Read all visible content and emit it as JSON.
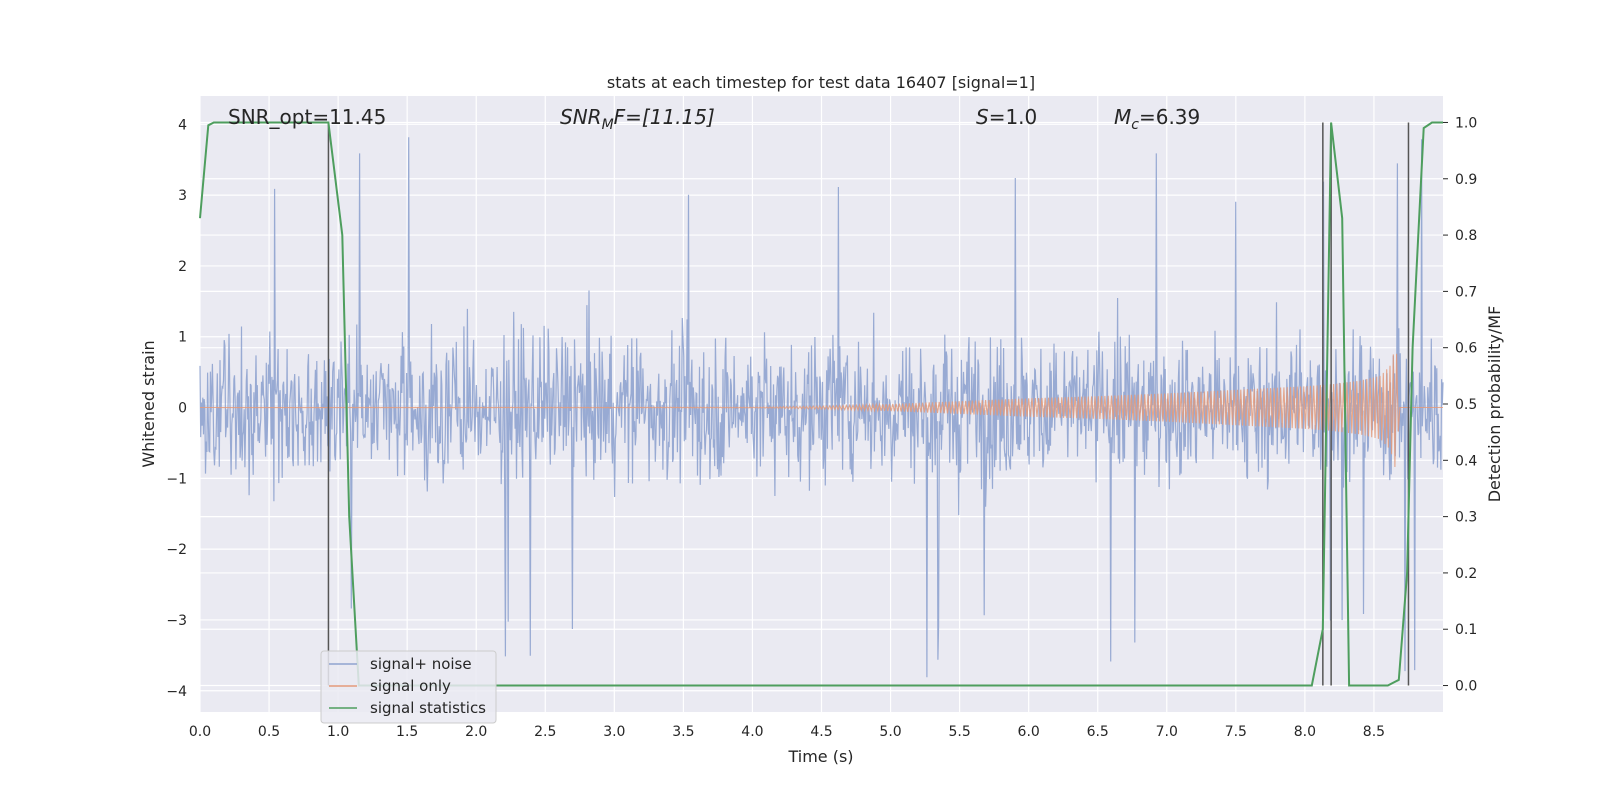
{
  "chart_data": {
    "type": "line",
    "title": "stats at each timestep for test data 16407 [signal=1]",
    "xlabel": "Time (s)",
    "ylabel_left": "Whitened strain",
    "ylabel_right": "Detection probability/MF",
    "xlim": [
      0.0,
      9.0
    ],
    "ylim_left": [
      -4.3,
      4.4
    ],
    "ylim_right": [
      -0.047,
      1.047
    ],
    "x_ticks": [
      "0.0",
      "0.5",
      "1.0",
      "1.5",
      "2.0",
      "2.5",
      "3.0",
      "3.5",
      "4.0",
      "4.5",
      "5.0",
      "5.5",
      "6.0",
      "6.5",
      "7.0",
      "7.5",
      "8.0",
      "8.5"
    ],
    "y_ticks_left": [
      "−4",
      "−3",
      "−2",
      "−1",
      "0",
      "1",
      "2",
      "3",
      "4"
    ],
    "y_ticks_right": [
      "0.0",
      "0.1",
      "0.2",
      "0.3",
      "0.4",
      "0.5",
      "0.6",
      "0.7",
      "0.8",
      "0.9",
      "1.0"
    ],
    "grid": true,
    "legend_position": "lower-left",
    "annotations": {
      "snr_opt": "SNR_opt=11.45",
      "snr_mf_base": "SNR",
      "snr_mf_sub": "M",
      "snr_mf_rest": "F=[11.15]",
      "s_italic": "S",
      "s_value": "=1.0",
      "mc_base": "M",
      "mc_sub": "c",
      "mc_value": "=6.39"
    },
    "series": [
      {
        "name": "signal+ noise",
        "axis": "left",
        "color": "#8fa3cf",
        "noise_envelope": {
          "upper_typical": 1.6,
          "lower_typical": -1.6,
          "upper_peak": 4.0,
          "lower_peak": -3.9
        }
      },
      {
        "name": "signal only",
        "axis": "left",
        "color": "#e39a7a",
        "envelope": {
          "t": [
            0.0,
            4.0,
            4.5,
            5.0,
            5.5,
            6.0,
            6.5,
            7.0,
            7.5,
            8.0,
            8.2,
            8.4,
            8.55,
            8.62,
            8.66,
            8.68
          ],
          "amp": [
            0.0,
            0.005,
            0.02,
            0.05,
            0.09,
            0.13,
            0.16,
            0.2,
            0.25,
            0.3,
            0.33,
            0.38,
            0.45,
            0.6,
            0.9,
            0.2
          ]
        }
      },
      {
        "name": "signal statistics",
        "axis": "right",
        "color": "#4e9e5e",
        "x": [
          0.0,
          0.06,
          0.1,
          0.93,
          1.03,
          1.08,
          1.15,
          8.05,
          8.13,
          8.19,
          8.27,
          8.32,
          8.6,
          8.68,
          8.74,
          8.78,
          8.86,
          8.92,
          8.97,
          9.0
        ],
        "y": [
          0.83,
          0.995,
          1.0,
          1.0,
          0.8,
          0.3,
          0.0,
          0.0,
          0.1,
          1.0,
          0.83,
          0.0,
          0.0,
          0.01,
          0.2,
          0.6,
          0.99,
          1.0,
          1.0,
          1.0
        ]
      }
    ],
    "vertical_lines_x": [
      0.93,
      8.13,
      8.19,
      8.75
    ]
  }
}
